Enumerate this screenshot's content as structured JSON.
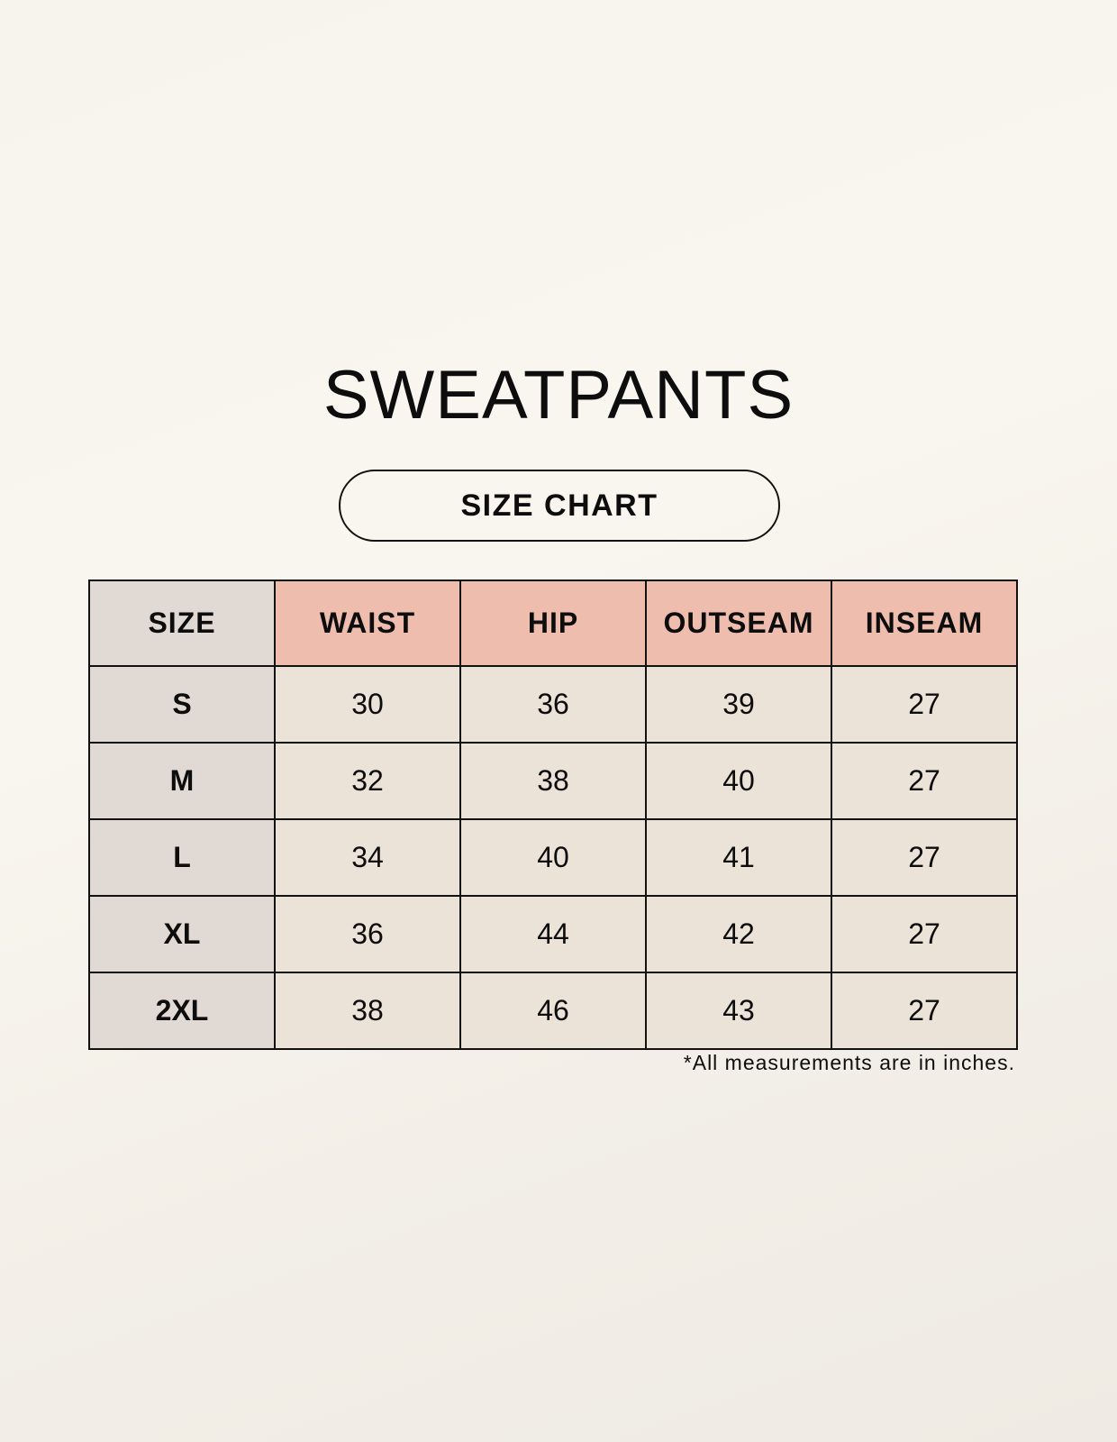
{
  "title": "SWEATPANTS",
  "subtitle": "SIZE CHART",
  "colors": {
    "header": "#eebdae",
    "size_column": "#e1d9d3",
    "cell": "#ebe2d8"
  },
  "table": {
    "headers": [
      "SIZE",
      "WAIST",
      "HIP",
      "OUTSEAM",
      "INSEAM"
    ],
    "rows": [
      [
        "S",
        "30",
        "36",
        "39",
        "27"
      ],
      [
        "M",
        "32",
        "38",
        "40",
        "27"
      ],
      [
        "L",
        "34",
        "40",
        "41",
        "27"
      ],
      [
        "XL",
        "36",
        "44",
        "42",
        "27"
      ],
      [
        "2XL",
        "38",
        "46",
        "43",
        "27"
      ]
    ]
  },
  "footnote": "*All measurements are in inches."
}
